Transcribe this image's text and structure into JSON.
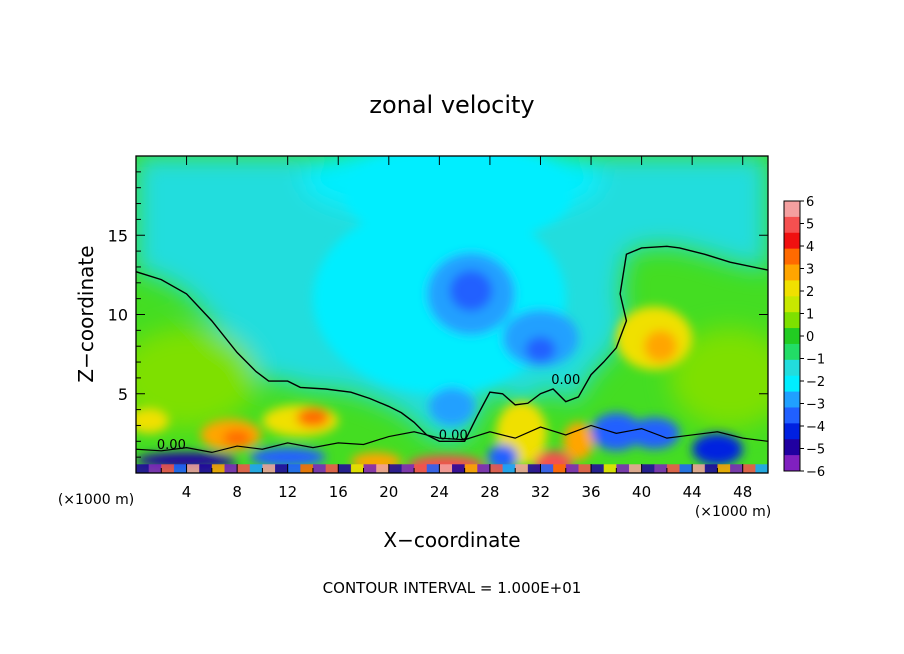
{
  "chart_data": {
    "type": "heatmap",
    "title": "zonal velocity",
    "xlabel": "X−coordinate",
    "ylabel": "Z−coordinate",
    "x_unit_left": "(×1000 m)",
    "x_unit_right": "(×1000 m)",
    "footer": "CONTOUR INTERVAL = 1.000E+01",
    "xlim": [
      0,
      50
    ],
    "ylim": [
      0,
      20
    ],
    "x_ticks": [
      4,
      8,
      12,
      16,
      20,
      24,
      28,
      32,
      36,
      40,
      44,
      48
    ],
    "y_ticks": [
      5,
      10,
      15
    ],
    "colorbar": {
      "ticks": [
        "6",
        "5",
        "4",
        "3",
        "2",
        "1",
        "0",
        "−1",
        "−2",
        "−3",
        "−4",
        "−5",
        "−6"
      ],
      "colors": [
        "#f4a0a0",
        "#f55050",
        "#f01010",
        "#ff6a00",
        "#ffa500",
        "#f0e000",
        "#c8e800",
        "#7ee000",
        "#22cc22",
        "#22dd66",
        "#22dddd",
        "#00eeff",
        "#20a0ff",
        "#2060ff",
        "#0020e0",
        "#2000a0",
        "#8020c0"
      ]
    },
    "contour_labels": [
      {
        "text": "0.00",
        "x": 2.8,
        "z": 1.5
      },
      {
        "text": "0.00",
        "x": 25.1,
        "z": 2.1
      },
      {
        "text": "0.00",
        "x": 34.0,
        "z": 5.6
      }
    ],
    "zero_contour": [
      [
        0,
        12.7
      ],
      [
        2,
        12.2
      ],
      [
        4,
        11.3
      ],
      [
        6,
        9.6
      ],
      [
        8,
        7.6
      ],
      [
        9.5,
        6.4
      ],
      [
        10.5,
        5.8
      ],
      [
        12,
        5.8
      ],
      [
        13,
        5.4
      ],
      [
        15,
        5.3
      ],
      [
        17,
        5.1
      ],
      [
        18.5,
        4.7
      ],
      [
        20,
        4.2
      ],
      [
        21,
        3.8
      ],
      [
        22,
        3.2
      ],
      [
        23,
        2.4
      ],
      [
        24,
        2.0
      ],
      [
        26,
        2.0
      ],
      [
        27,
        3.6
      ],
      [
        28,
        5.1
      ],
      [
        29,
        5.0
      ],
      [
        30,
        4.3
      ],
      [
        31,
        4.4
      ],
      [
        32,
        5.0
      ],
      [
        33,
        5.3
      ],
      [
        34,
        4.5
      ],
      [
        35,
        4.8
      ],
      [
        36,
        6.2
      ],
      [
        37,
        7.0
      ],
      [
        38,
        7.9
      ],
      [
        38.8,
        9.6
      ],
      [
        38.3,
        11.3
      ],
      [
        38.5,
        12.3
      ],
      [
        38.8,
        13.8
      ],
      [
        40,
        14.2
      ],
      [
        42,
        14.3
      ],
      [
        43,
        14.2
      ],
      [
        45,
        13.8
      ],
      [
        47,
        13.3
      ],
      [
        50,
        12.8
      ]
    ],
    "fields": [
      {
        "x": 25.5,
        "z": 17.5,
        "rx": 9,
        "ry": 3,
        "v": -2
      },
      {
        "x": 24,
        "z": 11,
        "rx": 10,
        "ry": 6,
        "v": -2
      },
      {
        "x": 26.5,
        "z": 11.3,
        "rx": 3.5,
        "ry": 2.6,
        "v": -3
      },
      {
        "x": 26.5,
        "z": 11.5,
        "rx": 1.7,
        "ry": 1.3,
        "v": -3.6
      },
      {
        "x": 32,
        "z": 8.5,
        "rx": 3,
        "ry": 1.8,
        "v": -3
      },
      {
        "x": 32,
        "z": 7.8,
        "rx": 1.2,
        "ry": 0.8,
        "v": -4
      },
      {
        "x": 25,
        "z": 4.2,
        "rx": 1.8,
        "ry": 1.2,
        "v": -3
      },
      {
        "x": 7.5,
        "z": 2.4,
        "rx": 2.4,
        "ry": 1.0,
        "v": 3
      },
      {
        "x": 8,
        "z": 2.2,
        "rx": 1.1,
        "ry": 0.5,
        "v": 4
      },
      {
        "x": 13,
        "z": 3.3,
        "rx": 3,
        "ry": 1.0,
        "v": 2.5
      },
      {
        "x": 14,
        "z": 3.5,
        "rx": 1.3,
        "ry": 0.6,
        "v": 3.5
      },
      {
        "x": 41,
        "z": 8.5,
        "rx": 3,
        "ry": 2,
        "v": 2
      },
      {
        "x": 41.5,
        "z": 8,
        "rx": 1.3,
        "ry": 1.0,
        "v": 3
      },
      {
        "x": 1,
        "z": 3.3,
        "rx": 1.6,
        "ry": 0.8,
        "v": 2.5
      },
      {
        "x": 30.5,
        "z": 2.5,
        "rx": 2,
        "ry": 2,
        "v": 2
      },
      {
        "x": 35,
        "z": 2.0,
        "rx": 1.2,
        "ry": 1.2,
        "v": 3
      },
      {
        "x": 24.5,
        "z": 0.5,
        "rx": 3,
        "ry": 0.6,
        "v": 5
      },
      {
        "x": 33,
        "z": 0.6,
        "rx": 1.5,
        "ry": 0.8,
        "v": 5
      },
      {
        "x": 19,
        "z": 0.7,
        "rx": 2,
        "ry": 0.6,
        "v": 3
      },
      {
        "x": 4,
        "z": 0.8,
        "rx": 4,
        "ry": 0.5,
        "v": -5
      },
      {
        "x": 12,
        "z": 1.0,
        "rx": 3,
        "ry": 0.6,
        "v": -4
      },
      {
        "x": 38,
        "z": 2.6,
        "rx": 2,
        "ry": 1.2,
        "v": -4
      },
      {
        "x": 41,
        "z": 2.5,
        "rx": 2,
        "ry": 1.0,
        "v": -4
      },
      {
        "x": 46,
        "z": 1.5,
        "rx": 2,
        "ry": 1,
        "v": -4.5
      },
      {
        "x": 29,
        "z": 1.0,
        "rx": 1.2,
        "ry": 0.8,
        "v": -4
      }
    ]
  }
}
